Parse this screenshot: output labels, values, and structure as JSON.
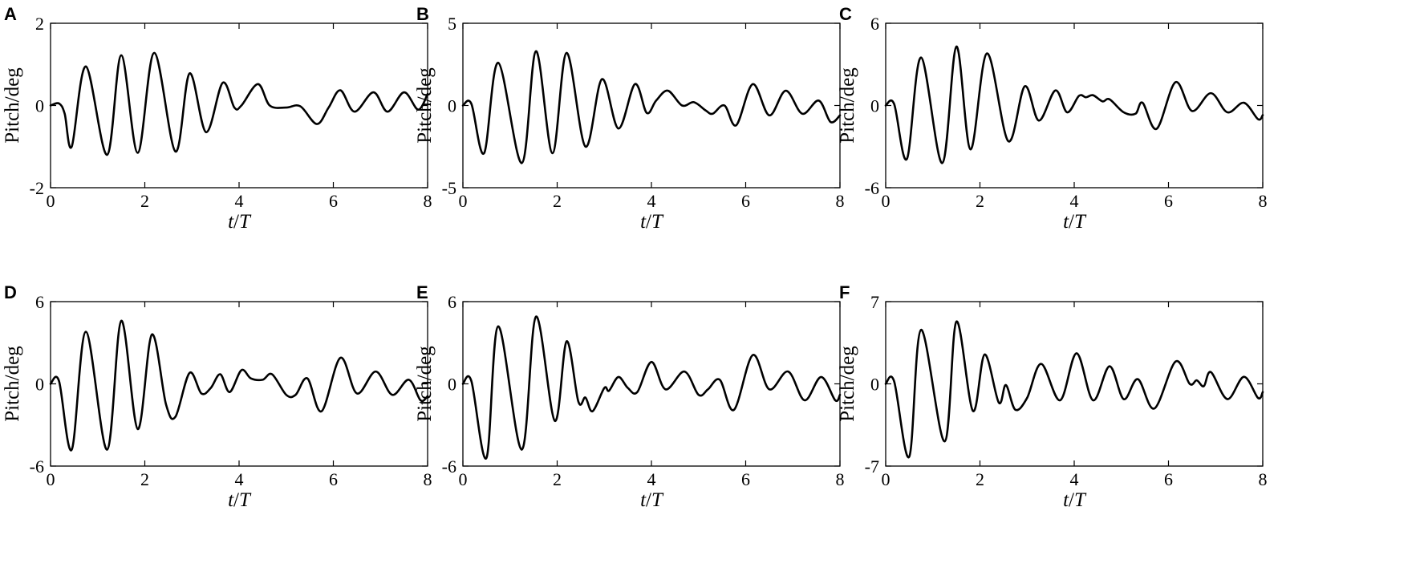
{
  "chart_data": [
    {
      "type": "line",
      "panel": "A",
      "xlabel": "t/T",
      "ylabel": "Pitch/deg",
      "xlim": [
        0,
        8
      ],
      "ylim": [
        -2,
        2
      ],
      "xticks": [
        "0",
        "2",
        "4",
        "6",
        "8"
      ],
      "yticks": [
        "-2",
        "0",
        "2"
      ],
      "series": [
        {
          "x": [
            0,
            0.18,
            0.3,
            0.45,
            0.75,
            1.2,
            1.5,
            1.85,
            2.2,
            2.65,
            2.95,
            3.3,
            3.65,
            3.9,
            4.05,
            4.4,
            4.65,
            5.0,
            5.3,
            5.65,
            5.9,
            6.15,
            6.45,
            6.85,
            7.15,
            7.5,
            7.8,
            8.0
          ],
          "y": [
            0,
            0.05,
            -0.2,
            -1.0,
            0.95,
            -1.2,
            1.22,
            -1.15,
            1.28,
            -1.12,
            0.78,
            -0.65,
            0.55,
            -0.05,
            0.0,
            0.52,
            0.0,
            -0.05,
            -0.02,
            -0.45,
            -0.05,
            0.37,
            -0.15,
            0.32,
            -0.15,
            0.32,
            -0.1,
            0.28
          ]
        }
      ]
    },
    {
      "type": "line",
      "panel": "B",
      "xlabel": "t/T",
      "ylabel": "Pitch/deg",
      "xlim": [
        0,
        8
      ],
      "ylim": [
        -5,
        5
      ],
      "xticks": [
        "0",
        "2",
        "4",
        "6",
        "8"
      ],
      "yticks": [
        "-5",
        "0",
        "5"
      ],
      "series": [
        {
          "x": [
            0,
            0.18,
            0.45,
            0.75,
            1.25,
            1.55,
            1.9,
            2.2,
            2.6,
            2.95,
            3.3,
            3.65,
            3.9,
            4.1,
            4.35,
            4.65,
            4.9,
            5.15,
            5.3,
            5.55,
            5.8,
            6.15,
            6.5,
            6.85,
            7.2,
            7.55,
            7.8,
            8.0
          ],
          "y": [
            0,
            0.1,
            -2.9,
            2.6,
            -3.5,
            3.3,
            -2.9,
            3.2,
            -2.5,
            1.6,
            -1.4,
            1.3,
            -0.45,
            0.3,
            0.9,
            0.0,
            0.2,
            -0.3,
            -0.5,
            0.0,
            -1.2,
            1.3,
            -0.6,
            0.9,
            -0.5,
            0.3,
            -1.0,
            -0.6
          ]
        }
      ]
    },
    {
      "type": "line",
      "panel": "C",
      "xlabel": "t/T",
      "ylabel": "Pitch/deg",
      "xlim": [
        0,
        8
      ],
      "ylim": [
        -6,
        6
      ],
      "xticks": [
        "0",
        "2",
        "4",
        "6",
        "8"
      ],
      "yticks": [
        "-6",
        "0",
        "6"
      ],
      "series": [
        {
          "x": [
            0,
            0.18,
            0.45,
            0.75,
            1.2,
            1.5,
            1.8,
            2.15,
            2.6,
            2.95,
            3.25,
            3.6,
            3.85,
            4.1,
            4.25,
            4.4,
            4.6,
            4.75,
            5.05,
            5.3,
            5.45,
            5.75,
            6.15,
            6.5,
            6.9,
            7.25,
            7.6,
            7.9,
            8.0
          ],
          "y": [
            0,
            0.1,
            -3.9,
            3.5,
            -4.2,
            4.3,
            -3.2,
            3.8,
            -2.6,
            1.4,
            -1.1,
            1.1,
            -0.5,
            0.7,
            0.6,
            0.75,
            0.3,
            0.45,
            -0.5,
            -0.6,
            0.2,
            -1.7,
            1.7,
            -0.4,
            0.9,
            -0.5,
            0.2,
            -1.0,
            -0.7
          ]
        }
      ]
    },
    {
      "type": "line",
      "panel": "D",
      "xlabel": "t/T",
      "ylabel": "Pitch/deg",
      "xlim": [
        0,
        8
      ],
      "ylim": [
        -6,
        6
      ],
      "xticks": [
        "0",
        "2",
        "4",
        "6",
        "8"
      ],
      "yticks": [
        "-6",
        "0",
        "6"
      ],
      "series": [
        {
          "x": [
            0,
            0.18,
            0.45,
            0.75,
            1.2,
            1.5,
            1.85,
            2.15,
            2.45,
            2.65,
            2.95,
            3.2,
            3.4,
            3.6,
            3.8,
            4.05,
            4.25,
            4.5,
            4.7,
            5.0,
            5.2,
            5.45,
            5.75,
            6.15,
            6.5,
            6.9,
            7.25,
            7.6,
            7.85,
            8.0
          ],
          "y": [
            0,
            0.2,
            -4.8,
            3.8,
            -4.8,
            4.6,
            -3.3,
            3.6,
            -1.5,
            -2.4,
            0.8,
            -0.7,
            -0.3,
            0.7,
            -0.6,
            1.0,
            0.4,
            0.3,
            0.7,
            -0.8,
            -0.8,
            0.4,
            -2.0,
            1.9,
            -0.7,
            0.9,
            -0.8,
            0.3,
            -1.2,
            -0.9
          ]
        }
      ]
    },
    {
      "type": "line",
      "panel": "E",
      "xlabel": "t/T",
      "ylabel": "Pitch/deg",
      "xlim": [
        0,
        8
      ],
      "ylim": [
        -6,
        6
      ],
      "xticks": [
        "0",
        "2",
        "4",
        "6",
        "8"
      ],
      "yticks": [
        "-6",
        "0",
        "6"
      ],
      "series": [
        {
          "x": [
            0,
            0.18,
            0.5,
            0.75,
            1.25,
            1.55,
            1.95,
            2.2,
            2.45,
            2.6,
            2.75,
            3.0,
            3.1,
            3.3,
            3.5,
            3.7,
            4.0,
            4.3,
            4.7,
            5.0,
            5.2,
            5.45,
            5.75,
            6.15,
            6.5,
            6.9,
            7.25,
            7.6,
            7.9,
            8.0
          ],
          "y": [
            0,
            0.2,
            -5.4,
            4.2,
            -4.8,
            4.9,
            -2.7,
            3.1,
            -1.3,
            -1.0,
            -2.0,
            -0.3,
            -0.5,
            0.5,
            -0.3,
            -0.6,
            1.6,
            -0.4,
            0.9,
            -0.8,
            -0.4,
            0.3,
            -1.9,
            2.1,
            -0.4,
            0.9,
            -1.2,
            0.5,
            -1.2,
            -0.8
          ]
        }
      ]
    },
    {
      "type": "line",
      "panel": "F",
      "xlabel": "t/T",
      "ylabel": "Pitch/deg",
      "xlim": [
        0,
        8
      ],
      "ylim": [
        -7,
        7
      ],
      "xticks": [
        "0",
        "2",
        "4",
        "6",
        "8"
      ],
      "yticks": [
        "-7",
        "0",
        "7"
      ],
      "series": [
        {
          "x": [
            0,
            0.18,
            0.5,
            0.75,
            1.25,
            1.5,
            1.85,
            2.1,
            2.4,
            2.55,
            2.75,
            3.0,
            3.3,
            3.7,
            4.05,
            4.4,
            4.75,
            5.05,
            5.35,
            5.7,
            6.15,
            6.45,
            6.6,
            6.75,
            6.9,
            7.25,
            7.6,
            7.9,
            8.0
          ],
          "y": [
            0,
            0.2,
            -6.2,
            4.6,
            -4.9,
            5.3,
            -2.3,
            2.5,
            -1.6,
            -0.1,
            -2.2,
            -1.2,
            1.7,
            -1.4,
            2.6,
            -1.4,
            1.5,
            -1.3,
            0.4,
            -2.1,
            1.9,
            0.0,
            0.3,
            -0.2,
            1.0,
            -1.3,
            0.6,
            -1.2,
            -0.7
          ]
        }
      ]
    }
  ]
}
